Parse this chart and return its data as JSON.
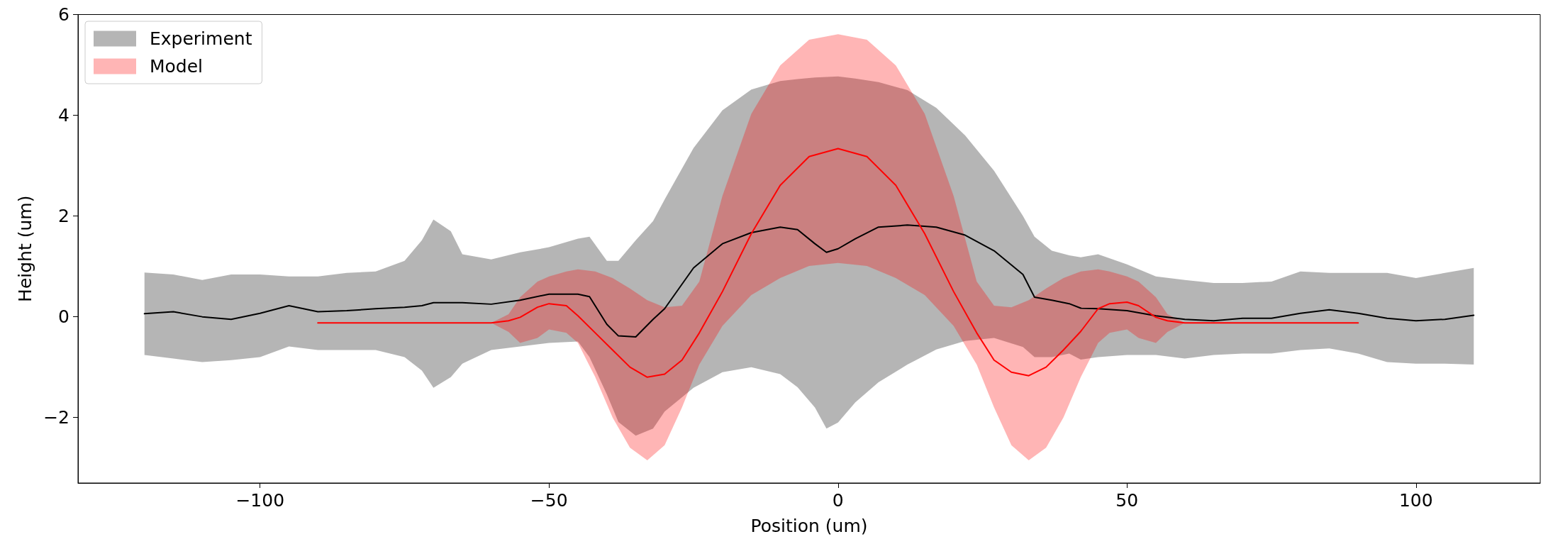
{
  "chart_data": {
    "type": "line",
    "xlabel": "Position (um)",
    "ylabel": "Height (um)",
    "xlim": [
      -131.5,
      121.5
    ],
    "ylim": [
      -3.3,
      6
    ],
    "xticks": [
      {
        "value": -100,
        "label": "−100"
      },
      {
        "value": -50,
        "label": "−50"
      },
      0,
      50,
      100
    ],
    "yticks": [
      {
        "value": -2,
        "label": "−2"
      },
      0,
      2,
      4,
      6
    ],
    "grid": false,
    "legend": "top left",
    "series": [
      {
        "name": "Experiment",
        "color": "#000000",
        "x": [
          -120,
          -115,
          -110,
          -105,
          -100,
          -95,
          -90,
          -85,
          -80,
          -75,
          -72,
          -70,
          -67,
          -65,
          -60,
          -55,
          -50,
          -45,
          -43,
          -40,
          -38,
          -35,
          -32,
          -30,
          -25,
          -20,
          -15,
          -10,
          -7,
          -4,
          -2,
          0,
          3,
          7,
          12,
          17,
          22,
          27,
          32,
          34,
          37,
          40,
          42,
          45,
          50,
          55,
          60,
          65,
          70,
          75,
          80,
          85,
          90,
          95,
          100,
          105,
          110
        ],
        "values": [
          0.06,
          0.1,
          0,
          -0.05,
          0.07,
          0.22,
          0.1,
          0.12,
          0.16,
          0.19,
          0.22,
          0.28,
          0.28,
          0.28,
          0.25,
          0.33,
          0.45,
          0.45,
          0.4,
          -0.15,
          -0.38,
          -0.4,
          -0.05,
          0.16,
          0.97,
          1.45,
          1.67,
          1.78,
          1.73,
          1.45,
          1.28,
          1.35,
          1.55,
          1.78,
          1.82,
          1.78,
          1.62,
          1.31,
          0.84,
          0.39,
          0.33,
          0.26,
          0.17,
          0.16,
          0.12,
          0.02,
          -0.05,
          -0.08,
          -0.03,
          -0.03,
          0.07,
          0.14,
          0.07,
          -0.03,
          -0.08,
          -0.05,
          0.03
        ],
        "upper": [
          0.88,
          0.84,
          0.73,
          0.84,
          0.84,
          0.8,
          0.8,
          0.87,
          0.9,
          1.11,
          1.52,
          1.93,
          1.7,
          1.24,
          1.14,
          1.28,
          1.38,
          1.55,
          1.59,
          1.11,
          1.11,
          1.52,
          1.9,
          2.33,
          3.35,
          4.1,
          4.51,
          4.68,
          4.72,
          4.75,
          4.76,
          4.77,
          4.73,
          4.66,
          4.5,
          4.15,
          3.6,
          2.9,
          2.0,
          1.59,
          1.31,
          1.22,
          1.18,
          1.24,
          1.04,
          0.8,
          0.73,
          0.67,
          0.67,
          0.7,
          0.9,
          0.87,
          0.87,
          0.87,
          0.77,
          0.87,
          0.97
        ],
        "lower": [
          -0.76,
          -0.83,
          -0.9,
          -0.86,
          -0.8,
          -0.59,
          -0.66,
          -0.66,
          -0.66,
          -0.8,
          -1.07,
          -1.41,
          -1.2,
          -0.93,
          -0.66,
          -0.59,
          -0.52,
          -0.49,
          -0.8,
          -1.54,
          -2.09,
          -2.36,
          -2.22,
          -1.88,
          -1.41,
          -1.1,
          -1.0,
          -1.14,
          -1.4,
          -1.8,
          -2.22,
          -2.1,
          -1.7,
          -1.3,
          -0.95,
          -0.65,
          -0.48,
          -0.42,
          -0.6,
          -0.8,
          -0.8,
          -0.73,
          -0.85,
          -0.8,
          -0.76,
          -0.76,
          -0.83,
          -0.76,
          -0.73,
          -0.73,
          -0.66,
          -0.63,
          -0.73,
          -0.9,
          -0.93,
          -0.93,
          -0.95
        ]
      },
      {
        "name": "Model",
        "color": "#ff0000",
        "x": [
          -90,
          -60,
          -57,
          -55,
          -52,
          -50,
          -47,
          -45,
          -42,
          -39,
          -36,
          -33,
          -30,
          -27,
          -24,
          -20,
          -15,
          -10,
          -5,
          0,
          5,
          10,
          15,
          20,
          24,
          27,
          30,
          33,
          36,
          39,
          42,
          45,
          47,
          50,
          52,
          55,
          57,
          60,
          90
        ],
        "values": [
          -0.12,
          -0.12,
          -0.08,
          -0.01,
          0.19,
          0.26,
          0.22,
          0.02,
          -0.32,
          -0.66,
          -1.0,
          -1.2,
          -1.14,
          -0.86,
          -0.32,
          0.5,
          1.65,
          2.61,
          3.18,
          3.34,
          3.18,
          2.61,
          1.65,
          0.5,
          -0.32,
          -0.86,
          -1.1,
          -1.17,
          -1.0,
          -0.66,
          -0.29,
          0.16,
          0.26,
          0.29,
          0.22,
          -0.01,
          -0.08,
          -0.12,
          -0.12
        ],
        "upper": [
          -0.12,
          -0.12,
          0.05,
          0.39,
          0.7,
          0.8,
          0.9,
          0.94,
          0.9,
          0.77,
          0.56,
          0.33,
          0.19,
          0.22,
          0.7,
          2.4,
          4.03,
          4.99,
          5.5,
          5.61,
          5.5,
          4.99,
          4.03,
          2.4,
          0.7,
          0.22,
          0.19,
          0.33,
          0.56,
          0.77,
          0.9,
          0.94,
          0.9,
          0.8,
          0.7,
          0.39,
          0.05,
          -0.12,
          -0.12
        ],
        "lower": [
          -0.12,
          -0.12,
          -0.3,
          -0.52,
          -0.42,
          -0.25,
          -0.32,
          -0.52,
          -1.2,
          -2.0,
          -2.6,
          -2.85,
          -2.55,
          -1.8,
          -0.95,
          -0.18,
          0.43,
          0.77,
          1.01,
          1.07,
          1.01,
          0.77,
          0.43,
          -0.18,
          -0.95,
          -1.8,
          -2.55,
          -2.85,
          -2.6,
          -2.0,
          -1.2,
          -0.52,
          -0.32,
          -0.25,
          -0.42,
          -0.52,
          -0.3,
          -0.12,
          -0.12
        ]
      }
    ]
  }
}
